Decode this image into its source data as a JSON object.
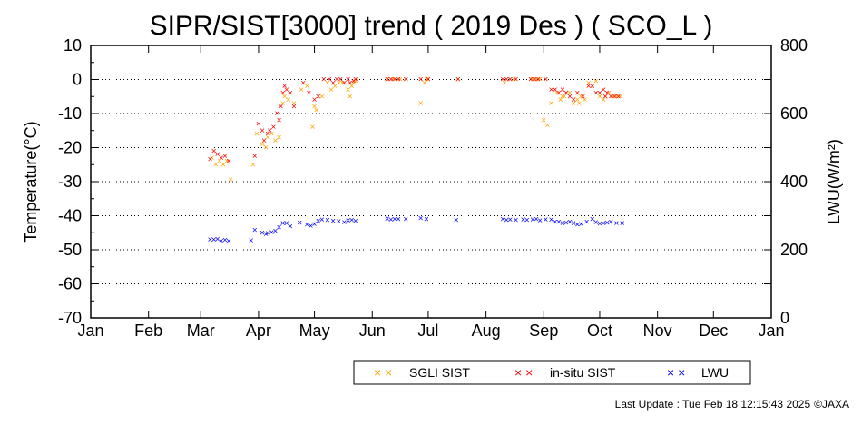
{
  "chart_data": {
    "type": "scatter",
    "title": "SIPR/SIST[3000] trend ( 2019 Des ) ( SCO_L )",
    "ylabel": "Temperature(°C)",
    "ylabel_right": "LWU(W/m²)",
    "ylim": [
      -70,
      10
    ],
    "y_ticks": [
      "10",
      "0",
      "-10",
      "-20",
      "-30",
      "-40",
      "-50",
      "-60",
      "-70"
    ],
    "ylim_right": [
      0,
      800
    ],
    "y_ticks_right": [
      "800",
      "600",
      "400",
      "200",
      "0"
    ],
    "xlim": [
      1,
      366
    ],
    "month_labels": [
      "Jan",
      "Feb",
      "Mar",
      "Apr",
      "May",
      "Jun",
      "Jul",
      "Aug",
      "Sep",
      "Oct",
      "Nov",
      "Dec",
      "Jan"
    ],
    "gridlines": "dotted horizontal at every 10 °C",
    "legend_position": "bottom-right below plot",
    "series": [
      {
        "name": "SGLI SIST",
        "axis": "left",
        "color": "#ffa500",
        "points": [
          [
            66,
            -23
          ],
          [
            68,
            -25
          ],
          [
            70,
            -24
          ],
          [
            72,
            -25
          ],
          [
            74,
            -24
          ],
          [
            76,
            -29.5
          ],
          [
            88,
            -25
          ],
          [
            90,
            -16
          ],
          [
            93,
            -19
          ],
          [
            95,
            -20
          ],
          [
            96,
            -17
          ],
          [
            98,
            -16
          ],
          [
            100,
            -18
          ],
          [
            102,
            -17
          ],
          [
            104,
            -7
          ],
          [
            105,
            -5
          ],
          [
            107,
            -6
          ],
          [
            110,
            -7
          ],
          [
            114,
            -3
          ],
          [
            117,
            -2
          ],
          [
            120,
            -14
          ],
          [
            121,
            -8
          ],
          [
            122,
            -9
          ],
          [
            125,
            -5
          ],
          [
            128,
            -1
          ],
          [
            130,
            -3
          ],
          [
            132,
            -2
          ],
          [
            134,
            -1
          ],
          [
            136,
            -1
          ],
          [
            139,
            -3
          ],
          [
            140,
            -5
          ],
          [
            141,
            -2
          ],
          [
            142,
            -1
          ],
          [
            143,
            -0.5
          ],
          [
            160,
            0
          ],
          [
            163,
            0
          ],
          [
            167,
            0
          ],
          [
            170,
            0
          ],
          [
            178,
            -7
          ],
          [
            180,
            -1
          ],
          [
            181,
            0
          ],
          [
            182,
            0
          ],
          [
            198,
            0
          ],
          [
            223,
            -1
          ],
          [
            226,
            0
          ],
          [
            228,
            0
          ],
          [
            238,
            0
          ],
          [
            240,
            0
          ],
          [
            242,
            0
          ],
          [
            244,
            -12
          ],
          [
            246,
            -13.5
          ],
          [
            248,
            -7
          ],
          [
            251,
            -4
          ],
          [
            253,
            -6
          ],
          [
            254,
            -5
          ],
          [
            255,
            -5
          ],
          [
            256,
            -4
          ],
          [
            258,
            -4
          ],
          [
            260,
            -7
          ],
          [
            262,
            -6
          ],
          [
            263,
            -7
          ],
          [
            264,
            -5
          ],
          [
            266,
            -6
          ],
          [
            268,
            -1
          ],
          [
            270,
            -2
          ],
          [
            272,
            -0.5
          ],
          [
            274,
            -5
          ],
          [
            276,
            -6
          ],
          [
            277,
            -5
          ],
          [
            279,
            -4
          ],
          [
            281,
            -5
          ],
          [
            283,
            -5
          ],
          [
            285,
            -5
          ]
        ]
      },
      {
        "name": "in-situ SIST",
        "axis": "left",
        "color": "#ff0000",
        "points": [
          [
            65,
            -23.5
          ],
          [
            67,
            -21
          ],
          [
            69,
            -22
          ],
          [
            71,
            -23
          ],
          [
            73,
            -22.5
          ],
          [
            75,
            -24
          ],
          [
            89,
            -22.5
          ],
          [
            91,
            -13
          ],
          [
            93,
            -15
          ],
          [
            94,
            -18
          ],
          [
            96,
            -16
          ],
          [
            97,
            -15
          ],
          [
            99,
            -14
          ],
          [
            101,
            -10
          ],
          [
            102,
            -12
          ],
          [
            103,
            -8
          ],
          [
            104,
            -4
          ],
          [
            105,
            -2
          ],
          [
            106,
            -3
          ],
          [
            108,
            -4
          ],
          [
            110,
            -8
          ],
          [
            115,
            -1
          ],
          [
            118,
            -4
          ],
          [
            121,
            -6
          ],
          [
            123,
            -5
          ],
          [
            126,
            0
          ],
          [
            129,
            0
          ],
          [
            131,
            -1
          ],
          [
            133,
            0
          ],
          [
            135,
            0
          ],
          [
            137,
            -1
          ],
          [
            139,
            0
          ],
          [
            140,
            -1
          ],
          [
            142,
            -0.5
          ],
          [
            143,
            0
          ],
          [
            160,
            0
          ],
          [
            162,
            0
          ],
          [
            164,
            0
          ],
          [
            166,
            0
          ],
          [
            170,
            0
          ],
          [
            178,
            0
          ],
          [
            182,
            0
          ],
          [
            198,
            0
          ],
          [
            222,
            0
          ],
          [
            224,
            0
          ],
          [
            226,
            0
          ],
          [
            229,
            0
          ],
          [
            237,
            0
          ],
          [
            239,
            0
          ],
          [
            241,
            0
          ],
          [
            245,
            0
          ],
          [
            248,
            -3
          ],
          [
            250,
            -3
          ],
          [
            252,
            -4
          ],
          [
            254,
            -3
          ],
          [
            256,
            -4
          ],
          [
            258,
            -5
          ],
          [
            260,
            -6
          ],
          [
            262,
            -4
          ],
          [
            265,
            -5
          ],
          [
            268,
            -2
          ],
          [
            270,
            -2
          ],
          [
            272,
            -4
          ],
          [
            274,
            -4
          ],
          [
            276,
            -3
          ],
          [
            277,
            -5
          ],
          [
            278,
            -4
          ],
          [
            280,
            -5
          ],
          [
            282,
            -5
          ],
          [
            284,
            -5
          ]
        ]
      },
      {
        "name": "LWU",
        "axis": "right",
        "color": "#0000ff",
        "points": [
          [
            65,
            230
          ],
          [
            67,
            229
          ],
          [
            69,
            231
          ],
          [
            71,
            226
          ],
          [
            73,
            228
          ],
          [
            75,
            225
          ],
          [
            87,
            227
          ],
          [
            89,
            258
          ],
          [
            93,
            250
          ],
          [
            95,
            246
          ],
          [
            96,
            248
          ],
          [
            98,
            251
          ],
          [
            100,
            255
          ],
          [
            102,
            266
          ],
          [
            104,
            277
          ],
          [
            106,
            278
          ],
          [
            108,
            268
          ],
          [
            113,
            279
          ],
          [
            117,
            274
          ],
          [
            119,
            270
          ],
          [
            121,
            275
          ],
          [
            123,
            284
          ],
          [
            125,
            288
          ],
          [
            128,
            287
          ],
          [
            131,
            284
          ],
          [
            134,
            283
          ],
          [
            137,
            280
          ],
          [
            139,
            285
          ],
          [
            141,
            287
          ],
          [
            143,
            284
          ],
          [
            160,
            291
          ],
          [
            162,
            288
          ],
          [
            164,
            289
          ],
          [
            166,
            290
          ],
          [
            170,
            289
          ],
          [
            178,
            292
          ],
          [
            181,
            290
          ],
          [
            197,
            287
          ],
          [
            222,
            289
          ],
          [
            224,
            287
          ],
          [
            226,
            288
          ],
          [
            229,
            287
          ],
          [
            233,
            288
          ],
          [
            235,
            287
          ],
          [
            238,
            288
          ],
          [
            240,
            289
          ],
          [
            242,
            285
          ],
          [
            245,
            288
          ],
          [
            248,
            288
          ],
          [
            250,
            282
          ],
          [
            252,
            281
          ],
          [
            254,
            278
          ],
          [
            256,
            279
          ],
          [
            258,
            281
          ],
          [
            260,
            277
          ],
          [
            262,
            274
          ],
          [
            264,
            275
          ],
          [
            267,
            282
          ],
          [
            270,
            289
          ],
          [
            272,
            280
          ],
          [
            274,
            276
          ],
          [
            276,
            277
          ],
          [
            278,
            279
          ],
          [
            280,
            281
          ],
          [
            283,
            277
          ],
          [
            286,
            277
          ]
        ]
      }
    ]
  },
  "legend": {
    "items": [
      {
        "marker": "× ×",
        "label": "SGLI SIST",
        "color": "#ffa500"
      },
      {
        "marker": "× ×",
        "label": "in-situ SIST",
        "color": "#ff0000"
      },
      {
        "marker": "× ×",
        "label": "LWU",
        "color": "#0000ff"
      }
    ]
  },
  "footer": {
    "update_text": "Last Update : Tue Feb 18 12:15:43 2025",
    "credit": "©JAXA"
  }
}
